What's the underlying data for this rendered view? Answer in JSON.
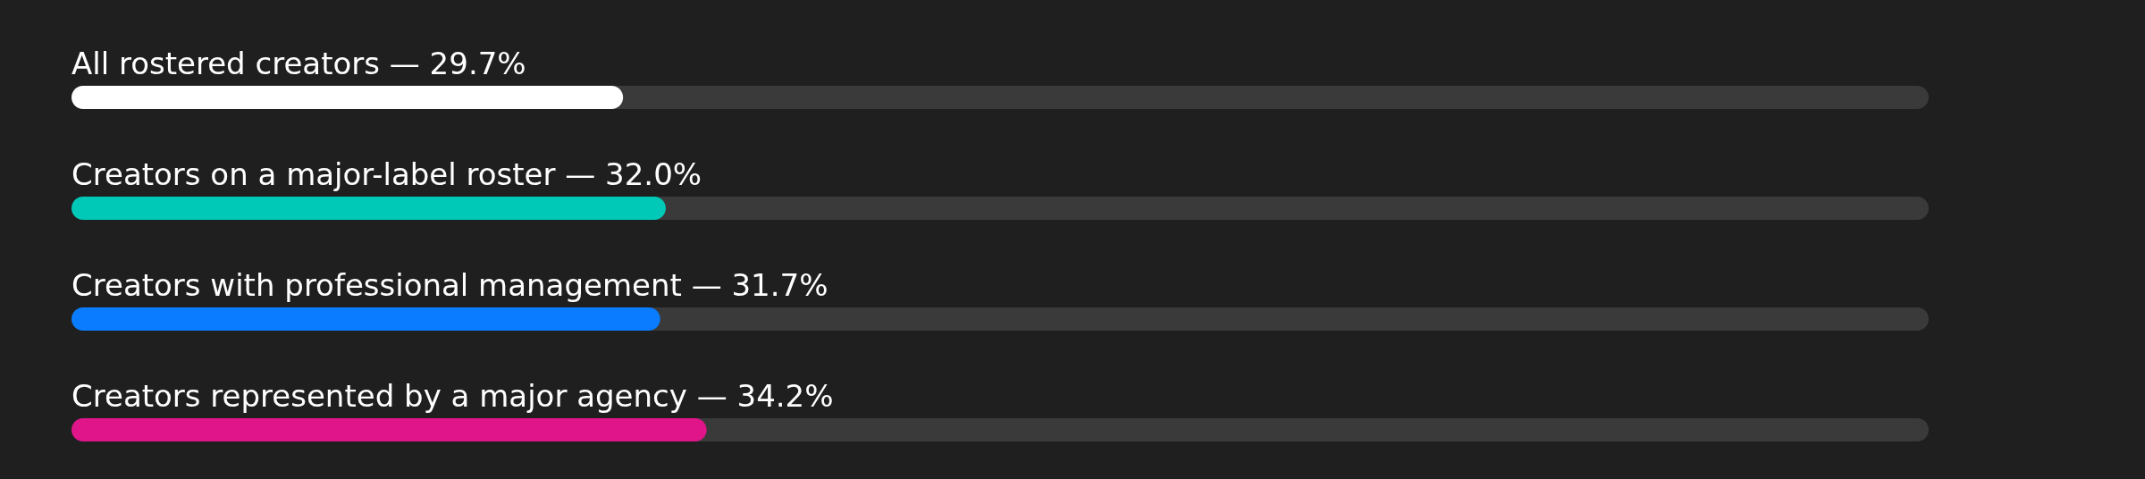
{
  "chart_data": {
    "type": "bar",
    "orientation": "horizontal",
    "categories": [
      "All rostered creators —",
      "Creators on a major-label roster —",
      "Creators with professional management —",
      "Creators represented by a major agency —"
    ],
    "values": [
      29.7,
      32.0,
      31.7,
      34.2
    ],
    "value_labels": [
      "29.7%",
      "32.0%",
      "31.7%",
      "34.2%"
    ],
    "colors": [
      "#ffffff",
      "#00c9b7",
      "#0a7cff",
      "#e0158a"
    ],
    "xlim": [
      0,
      100
    ],
    "tick_labels": "y"
  }
}
